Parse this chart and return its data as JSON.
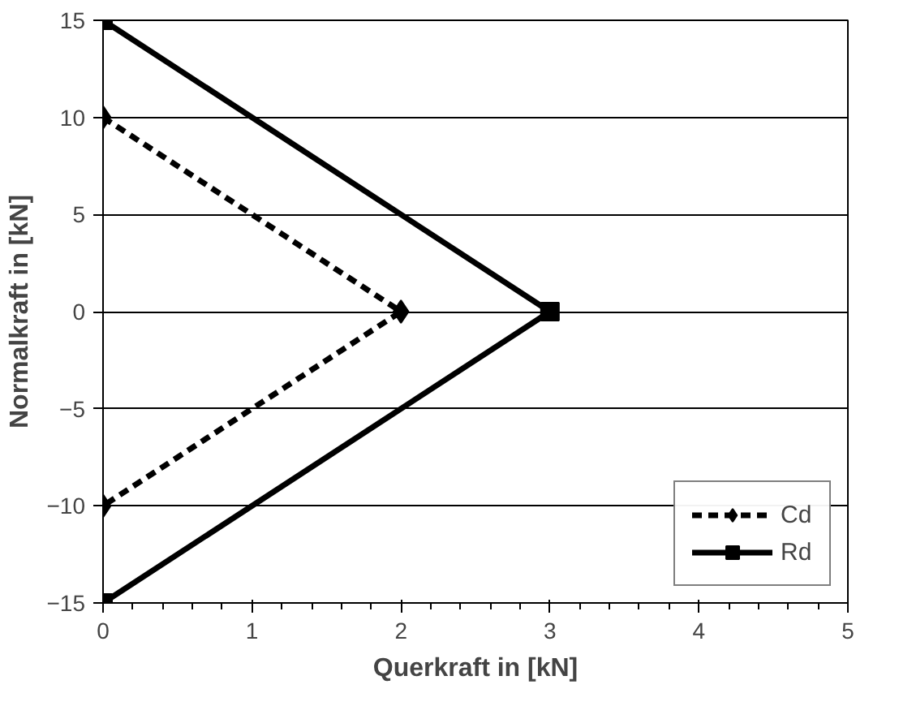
{
  "chart_data": {
    "type": "line",
    "xlabel": "Querkraft in [kN]",
    "ylabel": "Normalkraft in [kN]",
    "xlim": [
      0,
      5
    ],
    "ylim": [
      -15,
      15
    ],
    "xticks": [
      0,
      1,
      2,
      3,
      4,
      5
    ],
    "yticks": [
      -15,
      -10,
      -5,
      0,
      5,
      10,
      15
    ],
    "grid": "y",
    "legend": "bottom right",
    "series": [
      {
        "name": "Cd",
        "color": "#000000",
        "x": [
          0,
          2,
          0
        ],
        "values": [
          10,
          0,
          -10
        ],
        "marker": "diamond",
        "line_style": "dashed"
      },
      {
        "name": "Rd",
        "color": "#000000",
        "x": [
          0,
          3,
          0
        ],
        "values": [
          15,
          0,
          -15
        ],
        "marker": "square",
        "line_style": "solid"
      }
    ]
  }
}
